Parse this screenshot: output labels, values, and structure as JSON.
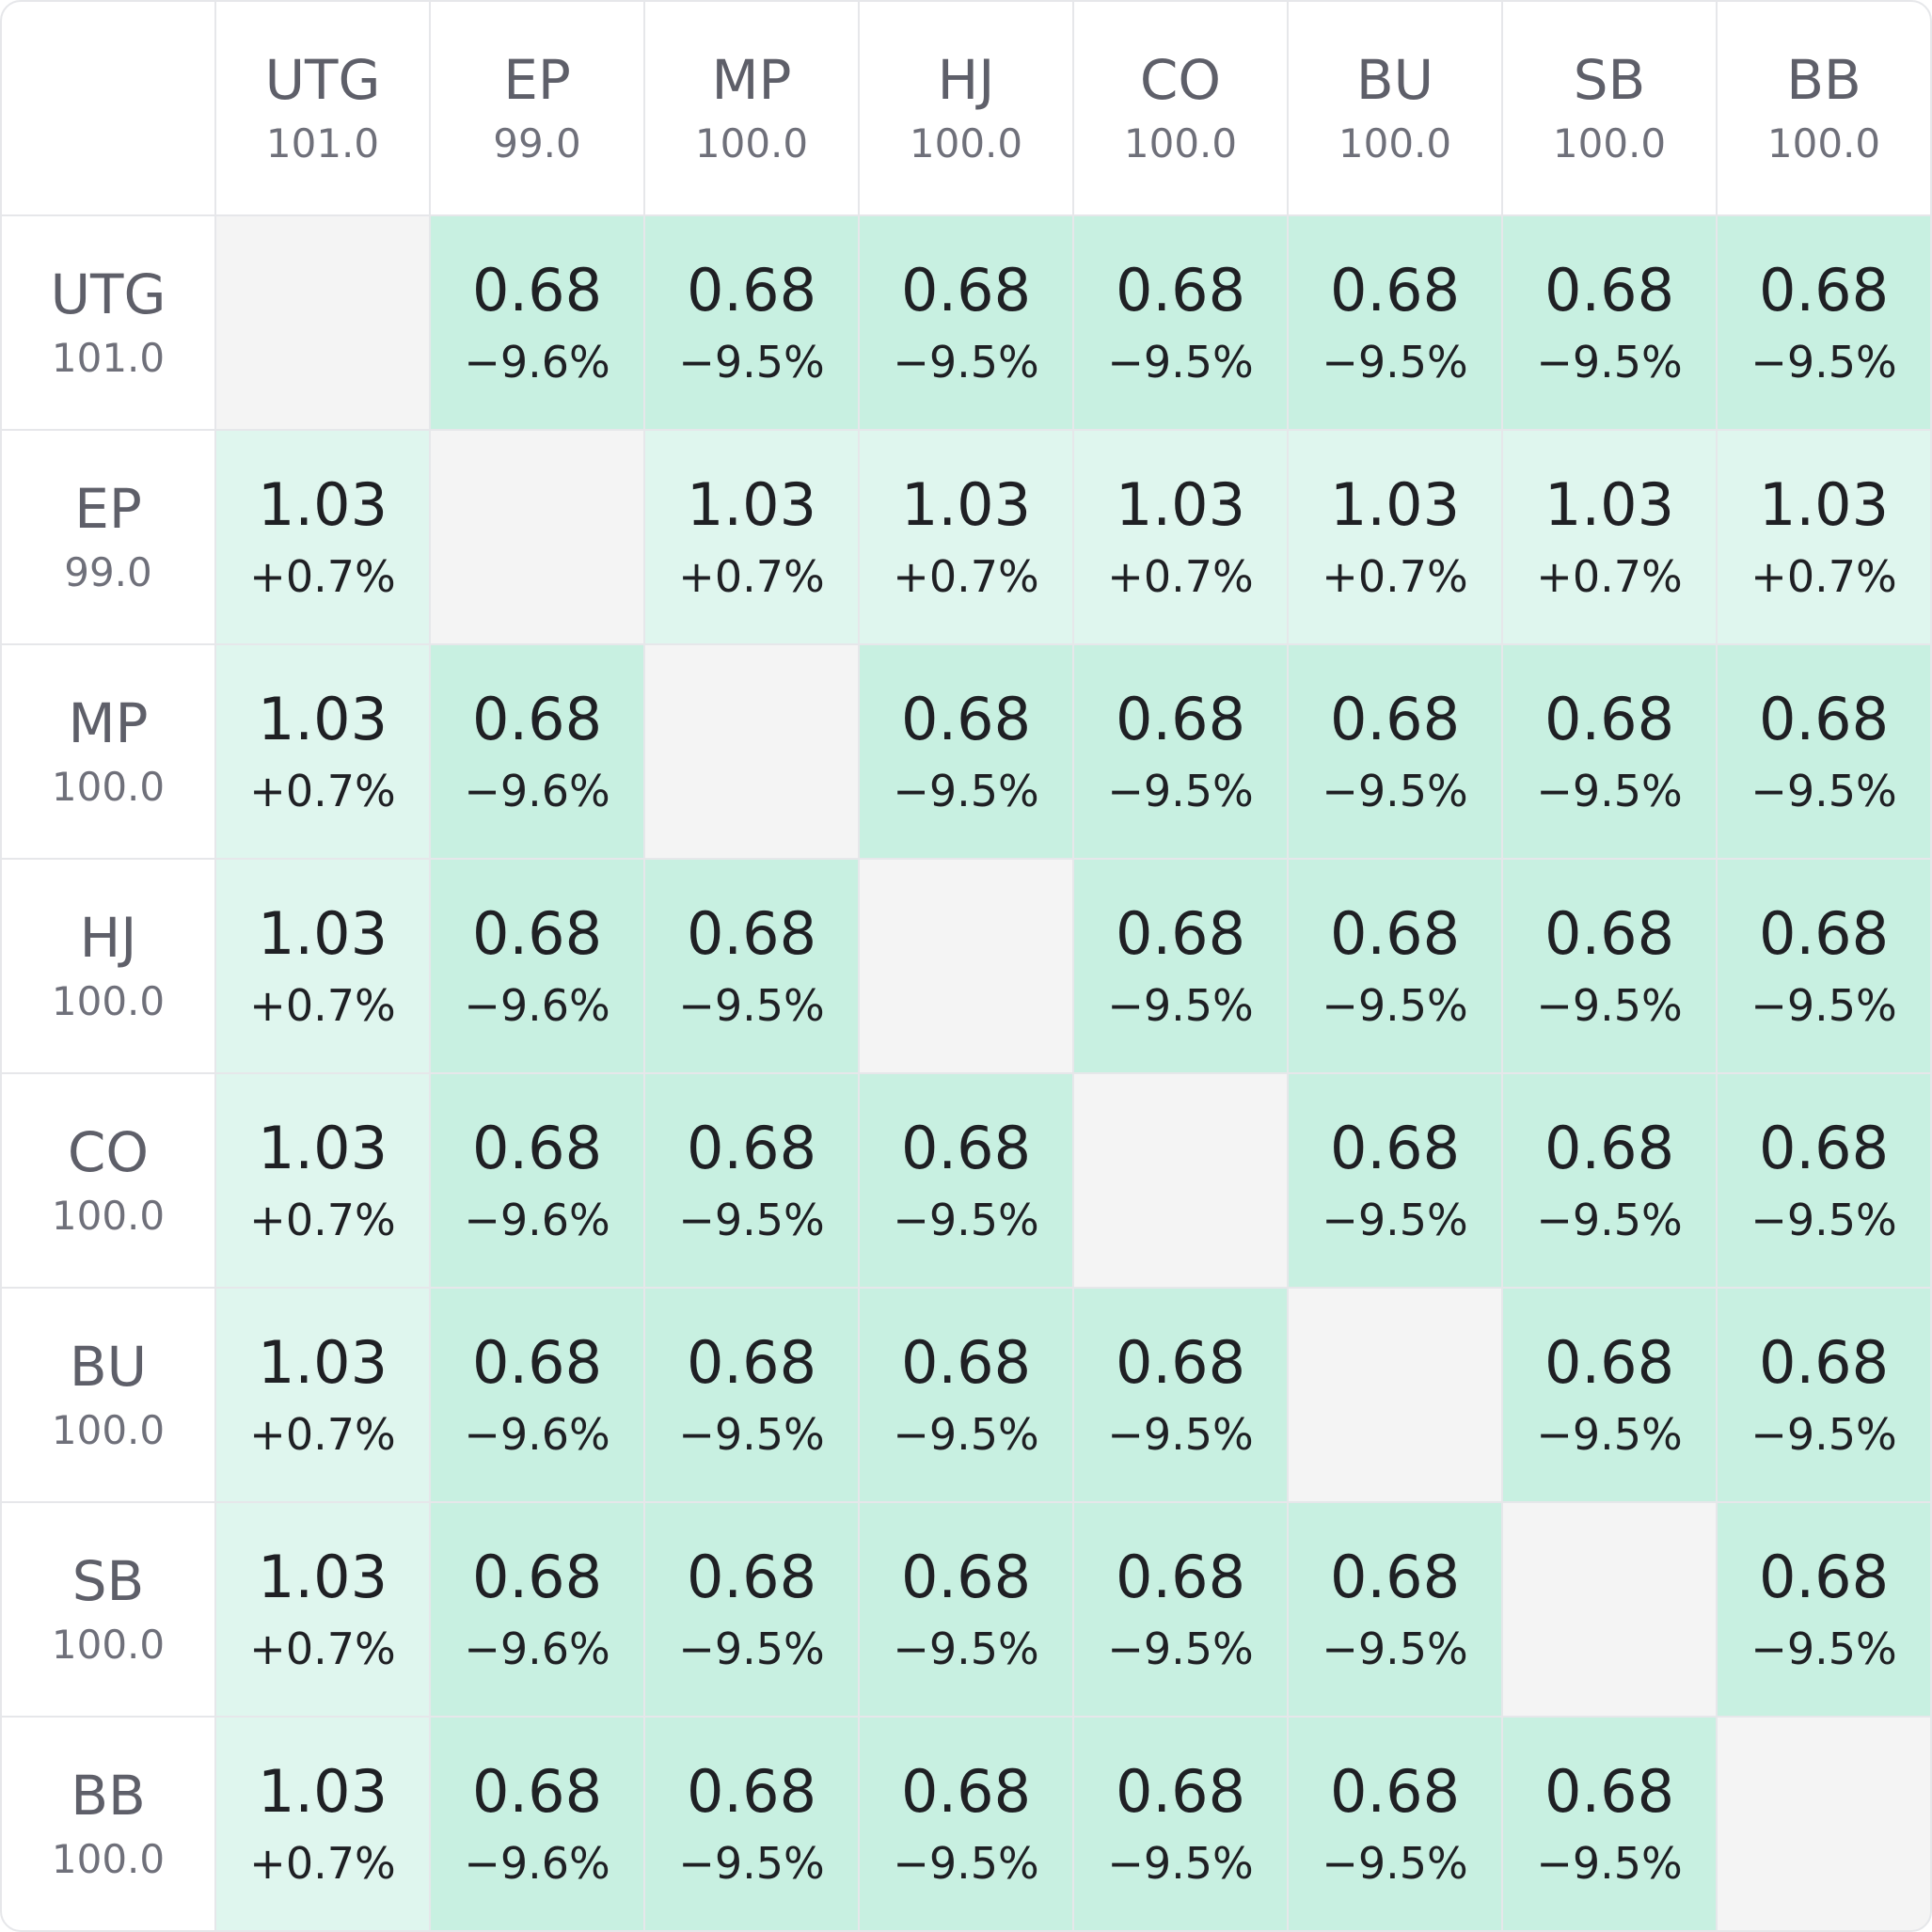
{
  "chart_data": {
    "type": "heatmap",
    "rows": [
      {
        "name": "UTG",
        "stack": "101.0"
      },
      {
        "name": "EP",
        "stack": "99.0"
      },
      {
        "name": "MP",
        "stack": "100.0"
      },
      {
        "name": "HJ",
        "stack": "100.0"
      },
      {
        "name": "CO",
        "stack": "100.0"
      },
      {
        "name": "BU",
        "stack": "100.0"
      },
      {
        "name": "SB",
        "stack": "100.0"
      },
      {
        "name": "BB",
        "stack": "100.0"
      }
    ],
    "columns": [
      {
        "name": "UTG",
        "stack": "101.0"
      },
      {
        "name": "EP",
        "stack": "99.0"
      },
      {
        "name": "MP",
        "stack": "100.0"
      },
      {
        "name": "HJ",
        "stack": "100.0"
      },
      {
        "name": "CO",
        "stack": "100.0"
      },
      {
        "name": "BU",
        "stack": "100.0"
      },
      {
        "name": "SB",
        "stack": "100.0"
      },
      {
        "name": "BB",
        "stack": "100.0"
      }
    ],
    "cells": [
      [
        null,
        {
          "value": "0.68",
          "change": "−9.6%"
        },
        {
          "value": "0.68",
          "change": "−9.5%"
        },
        {
          "value": "0.68",
          "change": "−9.5%"
        },
        {
          "value": "0.68",
          "change": "−9.5%"
        },
        {
          "value": "0.68",
          "change": "−9.5%"
        },
        {
          "value": "0.68",
          "change": "−9.5%"
        },
        {
          "value": "0.68",
          "change": "−9.5%"
        }
      ],
      [
        {
          "value": "1.03",
          "change": "+0.7%"
        },
        null,
        {
          "value": "1.03",
          "change": "+0.7%"
        },
        {
          "value": "1.03",
          "change": "+0.7%"
        },
        {
          "value": "1.03",
          "change": "+0.7%"
        },
        {
          "value": "1.03",
          "change": "+0.7%"
        },
        {
          "value": "1.03",
          "change": "+0.7%"
        },
        {
          "value": "1.03",
          "change": "+0.7%"
        }
      ],
      [
        {
          "value": "1.03",
          "change": "+0.7%"
        },
        {
          "value": "0.68",
          "change": "−9.6%"
        },
        null,
        {
          "value": "0.68",
          "change": "−9.5%"
        },
        {
          "value": "0.68",
          "change": "−9.5%"
        },
        {
          "value": "0.68",
          "change": "−9.5%"
        },
        {
          "value": "0.68",
          "change": "−9.5%"
        },
        {
          "value": "0.68",
          "change": "−9.5%"
        }
      ],
      [
        {
          "value": "1.03",
          "change": "+0.7%"
        },
        {
          "value": "0.68",
          "change": "−9.6%"
        },
        {
          "value": "0.68",
          "change": "−9.5%"
        },
        null,
        {
          "value": "0.68",
          "change": "−9.5%"
        },
        {
          "value": "0.68",
          "change": "−9.5%"
        },
        {
          "value": "0.68",
          "change": "−9.5%"
        },
        {
          "value": "0.68",
          "change": "−9.5%"
        }
      ],
      [
        {
          "value": "1.03",
          "change": "+0.7%"
        },
        {
          "value": "0.68",
          "change": "−9.6%"
        },
        {
          "value": "0.68",
          "change": "−9.5%"
        },
        {
          "value": "0.68",
          "change": "−9.5%"
        },
        null,
        {
          "value": "0.68",
          "change": "−9.5%"
        },
        {
          "value": "0.68",
          "change": "−9.5%"
        },
        {
          "value": "0.68",
          "change": "−9.5%"
        }
      ],
      [
        {
          "value": "1.03",
          "change": "+0.7%"
        },
        {
          "value": "0.68",
          "change": "−9.6%"
        },
        {
          "value": "0.68",
          "change": "−9.5%"
        },
        {
          "value": "0.68",
          "change": "−9.5%"
        },
        {
          "value": "0.68",
          "change": "−9.5%"
        },
        null,
        {
          "value": "0.68",
          "change": "−9.5%"
        },
        {
          "value": "0.68",
          "change": "−9.5%"
        }
      ],
      [
        {
          "value": "1.03",
          "change": "+0.7%"
        },
        {
          "value": "0.68",
          "change": "−9.6%"
        },
        {
          "value": "0.68",
          "change": "−9.5%"
        },
        {
          "value": "0.68",
          "change": "−9.5%"
        },
        {
          "value": "0.68",
          "change": "−9.5%"
        },
        {
          "value": "0.68",
          "change": "−9.5%"
        },
        null,
        {
          "value": "0.68",
          "change": "−9.5%"
        }
      ],
      [
        {
          "value": "1.03",
          "change": "+0.7%"
        },
        {
          "value": "0.68",
          "change": "−9.6%"
        },
        {
          "value": "0.68",
          "change": "−9.5%"
        },
        {
          "value": "0.68",
          "change": "−9.5%"
        },
        {
          "value": "0.68",
          "change": "−9.5%"
        },
        {
          "value": "0.68",
          "change": "−9.5%"
        },
        {
          "value": "0.68",
          "change": "−9.5%"
        },
        null
      ]
    ],
    "colors": {
      "low_value_cell": "#c8f0e1",
      "high_value_cell": "#dff6ee",
      "empty_cell": "#f4f4f4",
      "grid_line": "#e6e7ea"
    }
  }
}
